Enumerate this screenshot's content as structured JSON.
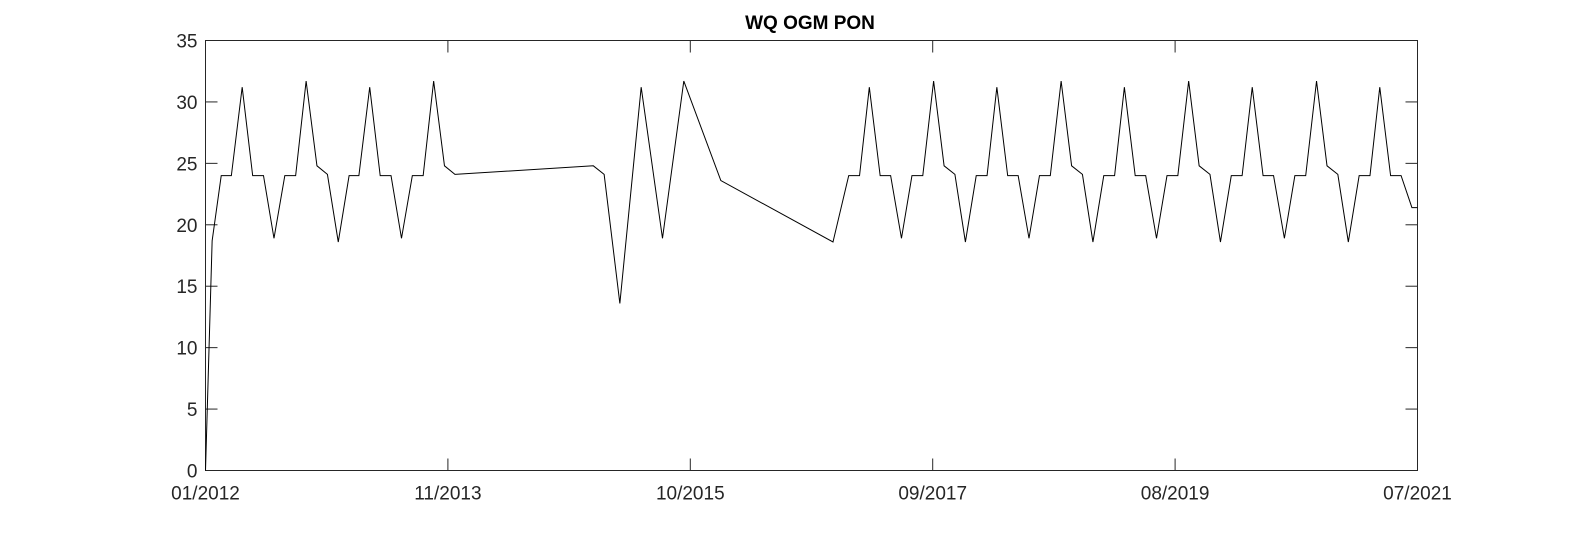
{
  "chart_data": {
    "type": "line",
    "title": "WQ OGM PON",
    "xlabel": "",
    "ylabel": "",
    "x_ticks": [
      "01/2012",
      "11/2013",
      "10/2015",
      "09/2017",
      "08/2019",
      "07/2021"
    ],
    "y_ticks": [
      0,
      5,
      10,
      15,
      20,
      25,
      30,
      35
    ],
    "ylim": [
      0,
      35
    ],
    "xlim": [
      "2012-01-01",
      "2021-07-01"
    ],
    "grid": false,
    "legend": "none",
    "line_color": "#000000",
    "series": [
      {
        "x": [
          "2012-01-01",
          "2012-01-20",
          "2012-02-15",
          "2012-03-15",
          "2012-04-15",
          "2012-05-15",
          "2012-06-15",
          "2012-07-15",
          "2012-08-15",
          "2012-09-15",
          "2012-10-15",
          "2012-11-15",
          "2012-12-15",
          "2013-01-15",
          "2013-02-15",
          "2013-03-15",
          "2013-04-15",
          "2013-05-15",
          "2013-06-15",
          "2013-07-15",
          "2013-08-15",
          "2013-09-15",
          "2013-10-15",
          "2013-11-15",
          "2013-12-15",
          "2015-01-15",
          "2015-02-15",
          "2015-04-01",
          "2015-06-01",
          "2015-08-01",
          "2015-10-01",
          "2016-01-15",
          "2016-12-01",
          "2017-01-15",
          "2017-02-15",
          "2017-03-15",
          "2017-04-15",
          "2017-05-15",
          "2017-06-15",
          "2017-07-15",
          "2017-08-15",
          "2017-09-15",
          "2017-10-15",
          "2017-11-15",
          "2017-12-15",
          "2018-01-15",
          "2018-02-15",
          "2018-03-15",
          "2018-04-15",
          "2018-05-15",
          "2018-06-15",
          "2018-07-15",
          "2018-08-15",
          "2018-09-15",
          "2018-10-15",
          "2018-11-15",
          "2018-12-15",
          "2019-01-15",
          "2019-02-15",
          "2019-03-15",
          "2019-04-15",
          "2019-05-15",
          "2019-06-15",
          "2019-07-15",
          "2019-08-15",
          "2019-09-15",
          "2019-10-15",
          "2019-11-15",
          "2019-12-15",
          "2020-01-15",
          "2020-02-15",
          "2020-03-15",
          "2020-04-15",
          "2020-05-15",
          "2020-06-15",
          "2020-07-15",
          "2020-08-15",
          "2020-09-15",
          "2020-10-15",
          "2020-11-15",
          "2020-12-15",
          "2021-01-15",
          "2021-02-15",
          "2021-03-15",
          "2021-04-15",
          "2021-05-15",
          "2021-06-15",
          "2021-07-01"
        ],
        "values": [
          0,
          18.7,
          24,
          24,
          31.2,
          24,
          24,
          18.9,
          24,
          24,
          31.7,
          24.8,
          24.1,
          18.6,
          24,
          24,
          31.2,
          24,
          24,
          18.9,
          24,
          24,
          31.7,
          24.8,
          24.1,
          24.8,
          24.1,
          13.6,
          31.2,
          18.9,
          31.7,
          23.6,
          18.6,
          24,
          24,
          31.2,
          24,
          24,
          18.9,
          24,
          24,
          31.7,
          24.8,
          24.1,
          18.6,
          24,
          24,
          31.2,
          24,
          24,
          18.9,
          24,
          24,
          31.7,
          24.8,
          24.1,
          18.6,
          24,
          24,
          31.2,
          24,
          24,
          18.9,
          24,
          24,
          31.7,
          24.8,
          24.1,
          18.6,
          24,
          24,
          31.2,
          24,
          24,
          18.9,
          24,
          24,
          31.7,
          24.8,
          24.1,
          18.6,
          24,
          24,
          31.2,
          24,
          24,
          21.4,
          21.4
        ]
      }
    ]
  }
}
